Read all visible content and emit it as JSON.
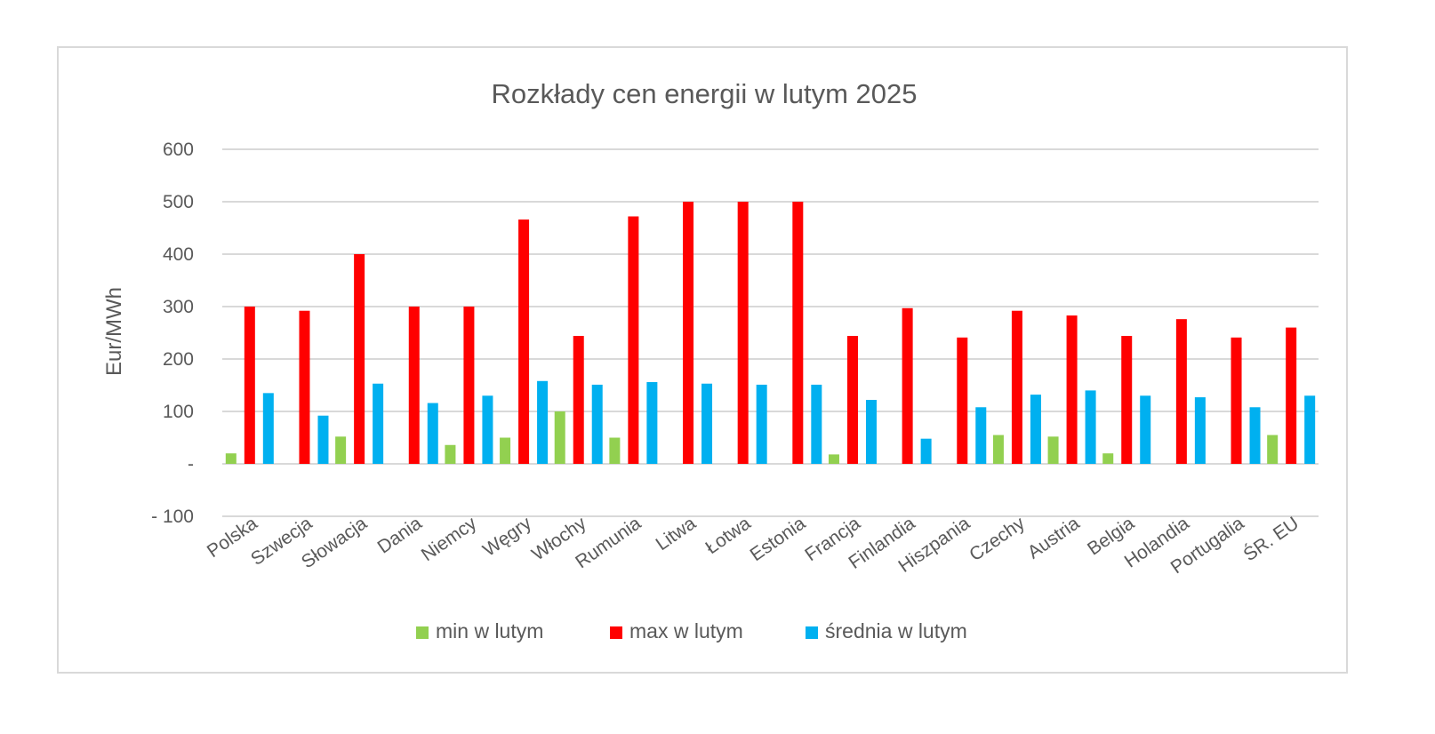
{
  "chart_data": {
    "type": "bar",
    "title": "Rozkłady cen energii w lutym 2025",
    "xlabel": "",
    "ylabel": "Eur/MWh",
    "ylim": [
      -100,
      600
    ],
    "yticks": [
      {
        "value": 600,
        "label": "600"
      },
      {
        "value": 500,
        "label": "500"
      },
      {
        "value": 400,
        "label": "400"
      },
      {
        "value": 300,
        "label": "300"
      },
      {
        "value": 200,
        "label": "200"
      },
      {
        "value": 100,
        "label": "100"
      },
      {
        "value": 0,
        "label": "-"
      },
      {
        "value": -100,
        "label": "- 100"
      }
    ],
    "grid": true,
    "legend_position": "bottom",
    "categories": [
      "Polska",
      "Szwecja",
      "Słowacja",
      "Dania",
      "Niemcy",
      "Węgry",
      "Włochy",
      "Rumunia",
      "Litwa",
      "Łotwa",
      "Estonia",
      "Francja",
      "Finlandia",
      "Hiszpania",
      "Czechy",
      "Austria",
      "Belgia",
      "Holandia",
      "Portugalia",
      "ŚR. EU"
    ],
    "series": [
      {
        "name": "min w lutym",
        "color": "#92d050",
        "values": [
          20,
          0,
          52,
          0,
          36,
          50,
          100,
          50,
          0,
          0,
          0,
          18,
          0,
          0,
          55,
          52,
          20,
          0,
          0,
          55
        ]
      },
      {
        "name": "max w lutym",
        "color": "#ff0000",
        "values": [
          300,
          292,
          400,
          300,
          300,
          466,
          244,
          472,
          500,
          500,
          500,
          244,
          297,
          241,
          292,
          283,
          244,
          276,
          241,
          260
        ]
      },
      {
        "name": "średnia w lutym",
        "color": "#00b0f0",
        "values": [
          135,
          92,
          153,
          116,
          130,
          158,
          151,
          156,
          153,
          151,
          151,
          122,
          48,
          108,
          132,
          140,
          130,
          127,
          108,
          130
        ]
      }
    ]
  }
}
